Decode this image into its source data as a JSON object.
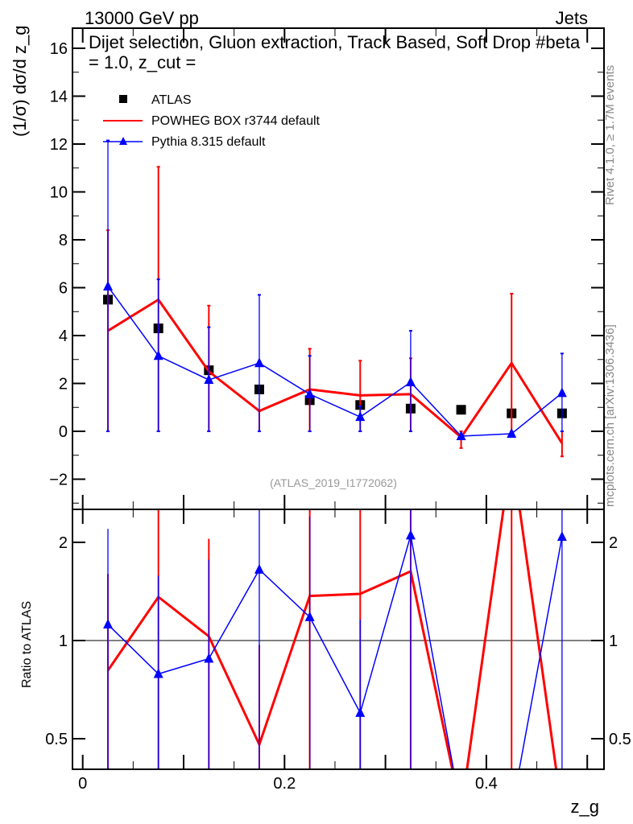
{
  "chart_data": [
    {
      "type": "line",
      "title": "Dijet selection, Gluon extraction, Track Based, Soft Drop #beta = 1.0, z_cut =",
      "top_left": "13000 GeV pp",
      "top_right": "Jets",
      "ylabel": "(1/σ) dσ/d z_g",
      "xlabel": "z_g",
      "ylim": [
        -3.26,
        16.84
      ],
      "xlim": [
        -0.01,
        0.517
      ],
      "yticks": [
        "−2",
        "0",
        "2",
        "4",
        "6",
        "8",
        "10",
        "12",
        "14",
        "16"
      ],
      "ytick_values": [
        -2,
        0,
        2,
        4,
        6,
        8,
        10,
        12,
        14,
        16
      ],
      "watermark": "(ATLAS_2019_I1772062)",
      "side_label_1": "Rivet 4.1.0, ≥ 1.7M events",
      "side_label_2": "mcplots.cern.ch [arXiv:1306.3436]",
      "x": [
        0.025,
        0.075,
        0.125,
        0.175,
        0.225,
        0.275,
        0.325,
        0.375,
        0.425,
        0.475
      ],
      "series": [
        {
          "name": "ATLAS",
          "color": "#000000",
          "marker": "square",
          "values": [
            5.5,
            4.3,
            2.55,
            1.75,
            1.3,
            1.1,
            0.95,
            0.9,
            0.75,
            0.75
          ]
        },
        {
          "name": "POWHEG BOX r3744 default",
          "color": "#ff0000",
          "marker": "none",
          "values": [
            4.2,
            5.5,
            2.5,
            0.85,
            1.75,
            1.5,
            1.55,
            -0.25,
            2.85,
            -0.5
          ],
          "err_low": [
            0,
            0,
            0,
            0,
            0,
            0,
            0,
            -0.7,
            0,
            -1.05
          ],
          "err_high": [
            8.4,
            11.05,
            5.25,
            0.85,
            3.45,
            2.95,
            3.05,
            0,
            5.75,
            0
          ]
        },
        {
          "name": "Pythia 8.315 default",
          "color": "#0000ff",
          "marker": "triangle",
          "values": [
            6.05,
            3.15,
            2.15,
            2.85,
            1.55,
            0.6,
            2.05,
            -0.2,
            -0.1,
            1.6
          ],
          "err_low": [
            0,
            0,
            0,
            0,
            0,
            0,
            0,
            -0.2,
            -0.1,
            0
          ],
          "err_high": [
            12.15,
            6.35,
            4.35,
            5.7,
            3.15,
            1.05,
            4.2,
            -0.2,
            -0.1,
            3.25
          ]
        }
      ]
    },
    {
      "type": "line",
      "ylabel": "Ratio to ATLAS",
      "yscale": "log",
      "ylim": [
        0.403,
        2.51
      ],
      "yticks": [
        "0.5",
        "1",
        "2"
      ],
      "ytick_values": [
        0.5,
        1,
        2
      ],
      "xticks": [
        "0",
        "0.2",
        "0.4"
      ],
      "xtick_values": [
        0,
        0.2,
        0.4
      ],
      "series": [
        {
          "name": "POWHEG BOX r3744 default",
          "color": "#ff0000",
          "values": [
            0.81,
            1.36,
            1.03,
            0.48,
            1.37,
            1.39,
            1.63,
            0.3,
            3.8,
            0.3
          ],
          "err_low": [
            0.3,
            0.3,
            0.3,
            0.3,
            0.3,
            0.3,
            0.3,
            0.3,
            0.3,
            0.3
          ],
          "err_high": [
            1.6,
            3,
            2.05,
            0.97,
            2.8,
            3,
            3.2,
            0.3,
            3.8,
            0.3
          ]
        },
        {
          "name": "Pythia 8.315 default",
          "color": "#0000ff",
          "values": [
            1.12,
            0.79,
            0.88,
            1.65,
            1.18,
            0.6,
            2.1,
            0.3,
            0.3,
            2.08
          ],
          "err_low": [
            0.3,
            0.3,
            0.3,
            0.3,
            0.3,
            0.3,
            0.3,
            0.3,
            0.3,
            0.3
          ],
          "err_high": [
            2.2,
            1.58,
            1.77,
            3,
            2.4,
            1.16,
            3.2,
            0.3,
            0.3,
            3
          ]
        }
      ]
    }
  ]
}
